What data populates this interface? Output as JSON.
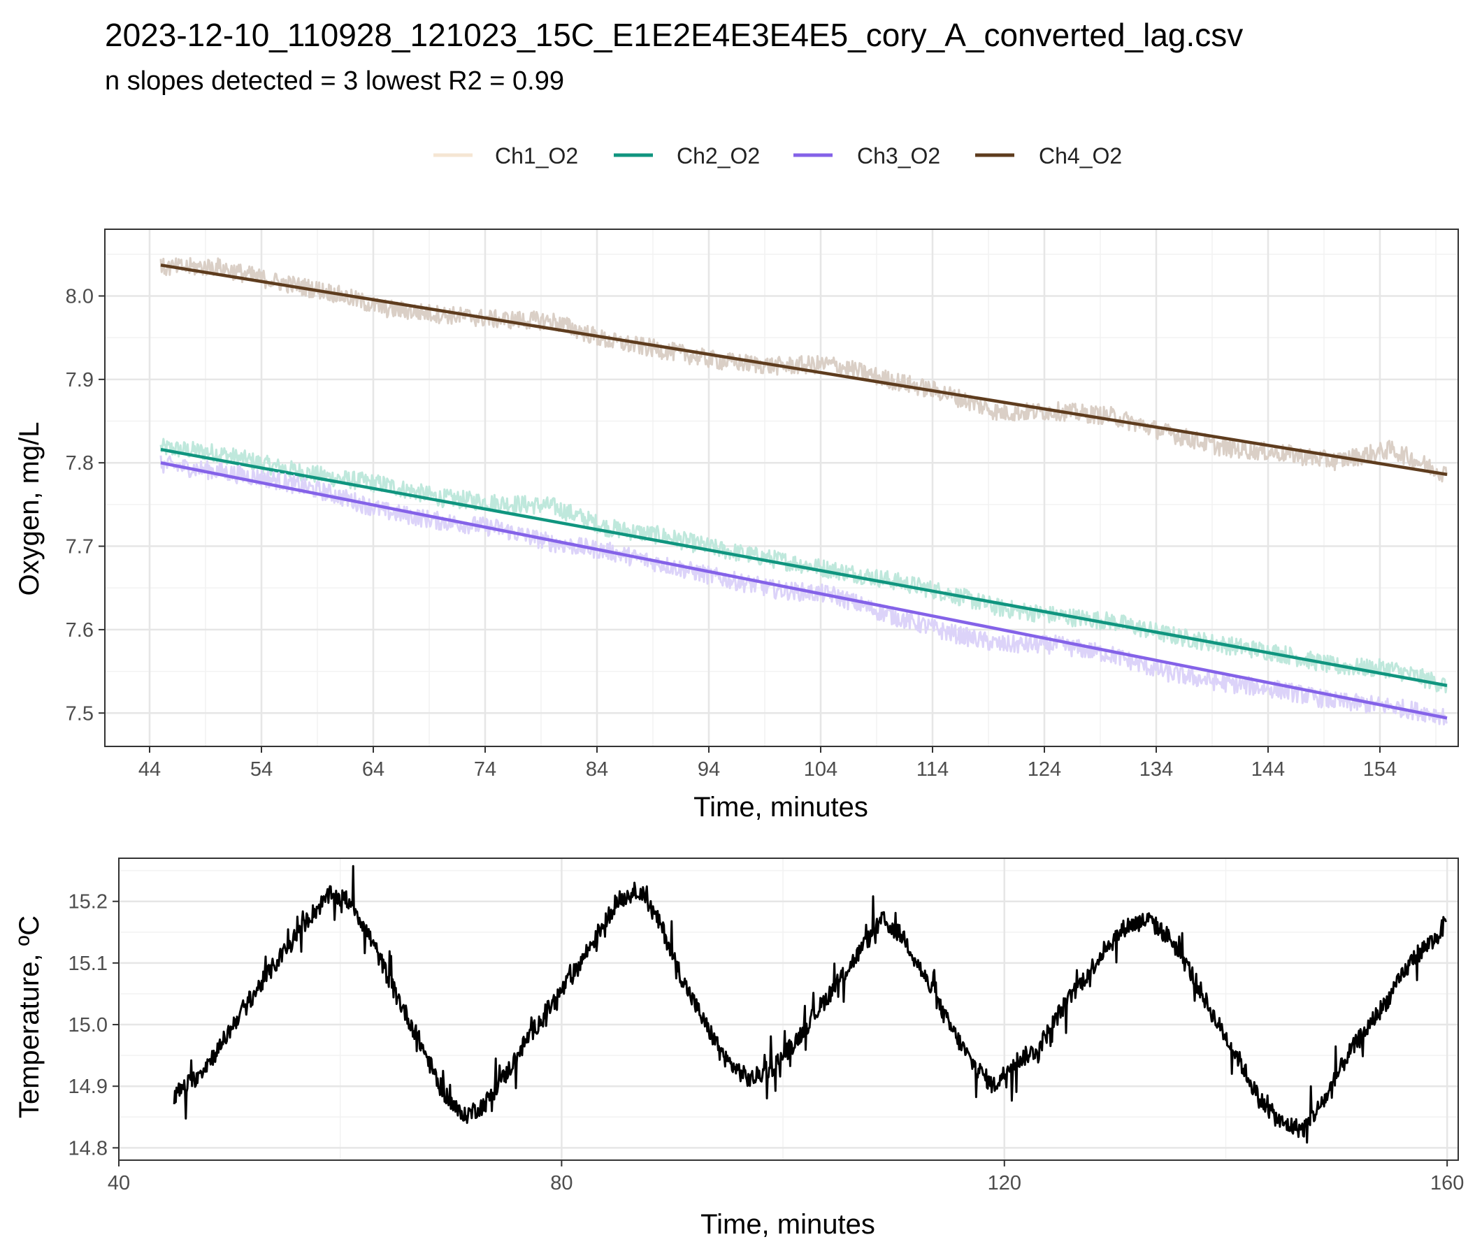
{
  "header": {
    "title": "2023-12-10_110928_121023_15C_E1E2E4E3E4E5_cory_A_converted_lag.csv",
    "subtitle": "n slopes detected = 3  lowest R2 = 0.99"
  },
  "chart_data": [
    {
      "type": "line",
      "xlabel": "Time, minutes",
      "ylabel": "Oxygen, mg/L",
      "xlim": [
        40,
        161
      ],
      "ylim": [
        7.46,
        8.08
      ],
      "xticks": [
        44,
        54,
        64,
        74,
        84,
        94,
        104,
        114,
        124,
        134,
        144,
        154
      ],
      "yticks": [
        7.5,
        7.6,
        7.7,
        7.8,
        7.9,
        8.0
      ],
      "grid": true,
      "legend_position": "top",
      "legend": [
        {
          "name": "Ch1_O2",
          "color": "#f5e6d3"
        },
        {
          "name": "Ch2_O2",
          "color": "#10957f"
        },
        {
          "name": "Ch3_O2",
          "color": "#8462e8"
        },
        {
          "name": "Ch4_O2",
          "color": "#5e3c1e"
        }
      ],
      "series": [
        {
          "name": "Ch2_O2",
          "color": "#10957f",
          "raw_color": "#bfe8dc",
          "fit": {
            "x": [
              45,
              160
            ],
            "y": [
              7.816,
              7.533
            ]
          },
          "raw": {
            "x": [
              45,
              50,
              55,
              60,
              65,
              70,
              75,
              80,
              85,
              90,
              95,
              100,
              105,
              110,
              115,
              120,
              125,
              130,
              135,
              140,
              145,
              150,
              155,
              160
            ],
            "y": [
              7.818,
              7.812,
              7.796,
              7.783,
              7.774,
              7.758,
              7.752,
              7.748,
              7.722,
              7.712,
              7.696,
              7.684,
              7.672,
              7.66,
              7.645,
              7.626,
              7.617,
              7.61,
              7.594,
              7.582,
              7.572,
              7.556,
              7.553,
              7.533
            ]
          }
        },
        {
          "name": "Ch3_O2",
          "color": "#8462e8",
          "raw_color": "#dcd3f9",
          "fit": {
            "x": [
              45,
              160
            ],
            "y": [
              7.8,
              7.494
            ]
          },
          "raw": {
            "x": [
              45,
              50,
              55,
              60,
              65,
              70,
              75,
              80,
              85,
              90,
              95,
              100,
              105,
              110,
              115,
              120,
              125,
              130,
              135,
              140,
              145,
              150,
              155,
              160
            ],
            "y": [
              7.798,
              7.79,
              7.78,
              7.764,
              7.742,
              7.73,
              7.722,
              7.704,
              7.694,
              7.678,
              7.662,
              7.648,
              7.642,
              7.618,
              7.598,
              7.582,
              7.582,
              7.57,
              7.548,
              7.536,
              7.528,
              7.514,
              7.508,
              7.496
            ]
          }
        },
        {
          "name": "Ch4_O2",
          "color": "#5e3c1e",
          "raw_color": "#dacfc6",
          "fit": {
            "x": [
              45,
              160
            ],
            "y": [
              8.037,
              7.786
            ]
          },
          "raw": {
            "x": [
              45,
              50,
              55,
              60,
              65,
              70,
              75,
              80,
              85,
              90,
              95,
              100,
              105,
              110,
              115,
              120,
              125,
              130,
              135,
              140,
              145,
              150,
              155,
              160
            ],
            "y": [
              8.034,
              8.035,
              8.018,
              8.005,
              7.985,
              7.978,
              7.972,
              7.97,
              7.946,
              7.935,
              7.922,
              7.916,
              7.918,
              7.9,
              7.884,
              7.86,
              7.862,
              7.856,
              7.836,
              7.818,
              7.812,
              7.802,
              7.816,
              7.786
            ]
          }
        }
      ]
    },
    {
      "type": "line",
      "xlabel": "Time, minutes",
      "ylabel": "Temperature, ºC",
      "xlim": [
        40,
        161
      ],
      "ylim": [
        14.78,
        15.27
      ],
      "xticks": [
        40,
        80,
        120,
        160
      ],
      "yticks": [
        14.8,
        14.9,
        15.0,
        15.1,
        15.2
      ],
      "grid": true,
      "series": [
        {
          "color": "#000000",
          "x": [
            45,
            47,
            49,
            51,
            53,
            55,
            57,
            59,
            61,
            63,
            65,
            67,
            69,
            71,
            73,
            75,
            77,
            79,
            81,
            83,
            85,
            87,
            89,
            91,
            93,
            95,
            97,
            99,
            101,
            103,
            105,
            107,
            109,
            111,
            113,
            115,
            117,
            119,
            121,
            123,
            125,
            127,
            129,
            131,
            133,
            135,
            137,
            139,
            141,
            143,
            145,
            147,
            149,
            151,
            153,
            155,
            157,
            159,
            160
          ],
          "y": [
            14.885,
            14.915,
            14.96,
            15.02,
            15.07,
            15.12,
            15.17,
            15.21,
            15.2,
            15.13,
            15.05,
            14.98,
            14.9,
            14.85,
            14.87,
            14.92,
            14.98,
            15.03,
            15.08,
            15.14,
            15.2,
            15.22,
            15.16,
            15.07,
            15.0,
            14.94,
            14.91,
            14.93,
            14.97,
            15.02,
            15.07,
            15.12,
            15.17,
            15.14,
            15.07,
            15.0,
            14.94,
            14.9,
            14.94,
            14.96,
            15.02,
            15.07,
            15.12,
            15.16,
            15.17,
            15.14,
            15.08,
            15.01,
            14.95,
            14.88,
            14.84,
            14.83,
            14.88,
            14.95,
            15.0,
            15.05,
            15.11,
            15.14,
            15.17
          ]
        }
      ]
    }
  ]
}
